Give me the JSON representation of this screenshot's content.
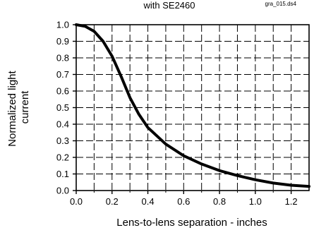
{
  "chart_data": {
    "type": "line",
    "title": "with SE2460",
    "file_id": "gra_015.ds4",
    "xlabel": "Lens-to-lens separation - inches",
    "ylabel": [
      "Normalized light",
      "current"
    ],
    "xlim": [
      0.0,
      1.3
    ],
    "ylim": [
      0.0,
      1.0
    ],
    "x_ticks": [
      0.0,
      0.2,
      0.4,
      0.6,
      0.8,
      1.0,
      1.2
    ],
    "x_tick_labels": [
      "0.0",
      "0.2",
      "0.4",
      "0.6",
      "0.8",
      "1.0",
      "1.2"
    ],
    "y_ticks": [
      0.0,
      0.1,
      0.2,
      0.3,
      0.4,
      0.5,
      0.6,
      0.7,
      0.8,
      0.9,
      1.0
    ],
    "y_tick_labels": [
      "0.0",
      "0.1",
      "0.2",
      "0.3",
      "0.4",
      "0.5",
      "0.6",
      "0.7",
      "0.8",
      "0.9",
      "1.0"
    ],
    "grid": true,
    "series": [
      {
        "x": [
          0.0,
          0.05,
          0.1,
          0.15,
          0.2,
          0.25,
          0.3,
          0.35,
          0.4,
          0.5,
          0.6,
          0.7,
          0.8,
          0.9,
          1.0,
          1.1,
          1.2,
          1.3
        ],
        "y": [
          1.0,
          0.99,
          0.96,
          0.9,
          0.81,
          0.69,
          0.56,
          0.46,
          0.38,
          0.28,
          0.21,
          0.16,
          0.12,
          0.09,
          0.065,
          0.045,
          0.032,
          0.025
        ]
      }
    ]
  }
}
